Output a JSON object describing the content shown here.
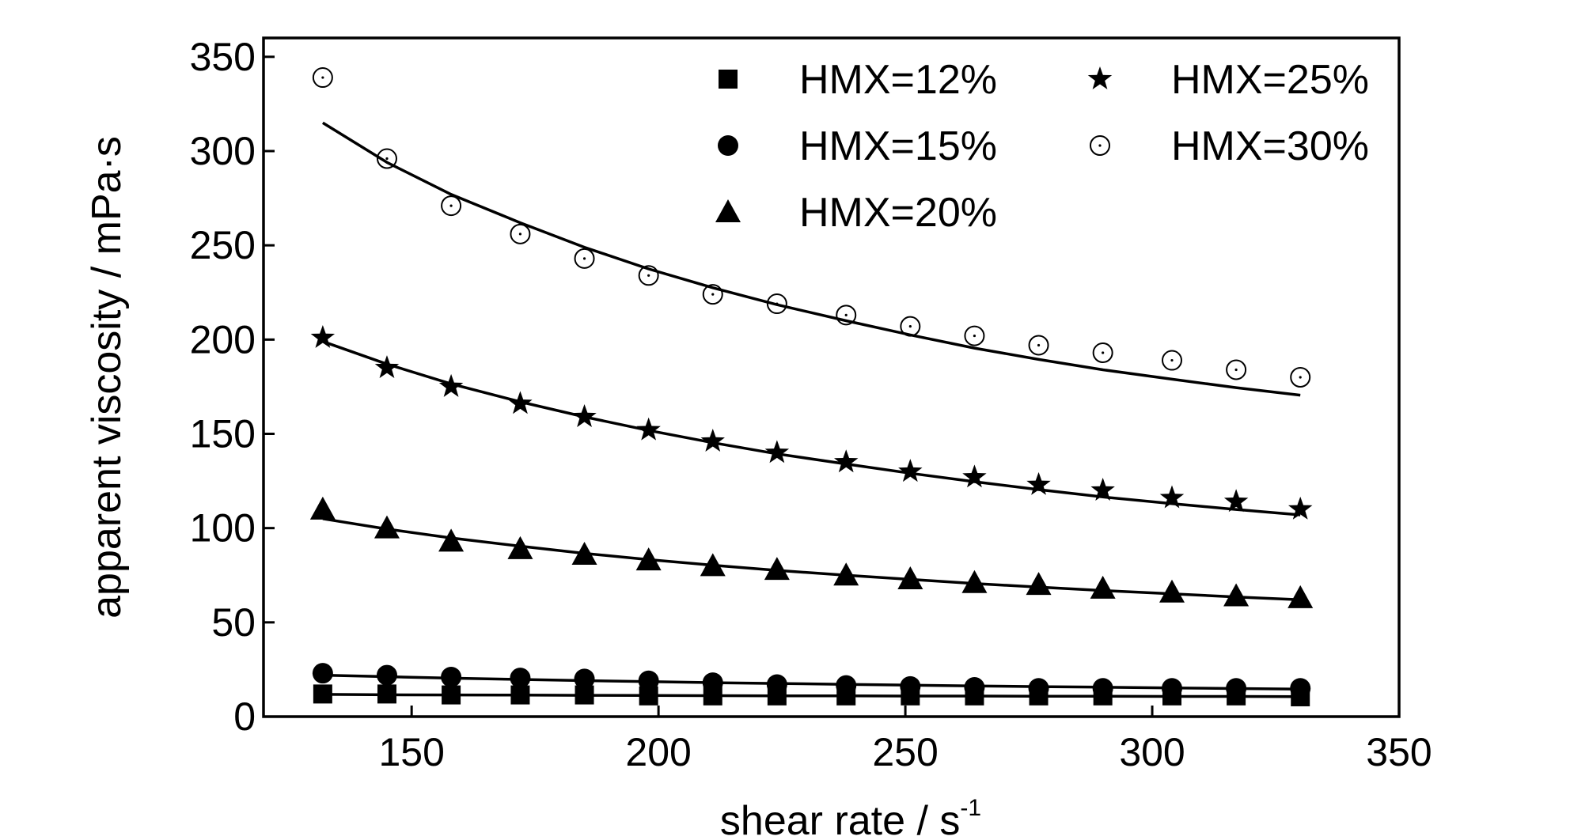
{
  "chart_data": {
    "type": "scatter",
    "title": "",
    "xlabel": "shear rate / s",
    "xlabel_superscript": "-1",
    "ylabel": "apparent viscosity / mPa·s",
    "xlim": [
      120,
      350
    ],
    "ylim": [
      0,
      360
    ],
    "xticks": [
      150,
      200,
      250,
      300,
      350
    ],
    "yticks": [
      0,
      50,
      100,
      150,
      200,
      250,
      300,
      350
    ],
    "x": [
      132,
      145,
      158,
      172,
      185,
      198,
      211,
      224,
      238,
      251,
      264,
      277,
      290,
      304,
      317,
      330
    ],
    "legend_position": "top",
    "fit_lines": true,
    "series": [
      {
        "name": "HMX=12%",
        "marker": "square",
        "values": [
          12,
          12,
          11.5,
          11.5,
          11.5,
          11,
          11,
          11,
          11,
          11,
          11,
          11,
          11,
          11,
          11,
          10.5
        ],
        "fit": [
          11.8,
          11.6,
          11.5,
          11.4,
          11.3,
          11.2,
          11.1,
          11.0,
          11.0,
          10.9,
          10.9,
          10.8,
          10.8,
          10.7,
          10.7,
          10.6
        ]
      },
      {
        "name": "HMX=15%",
        "marker": "circle-filled",
        "values": [
          23,
          22,
          21,
          20.5,
          20,
          19,
          18,
          17,
          16.5,
          16,
          15.5,
          15,
          15,
          15,
          15,
          15
        ],
        "fit": [
          22.0,
          21.2,
          20.4,
          19.7,
          19.1,
          18.6,
          18.0,
          17.6,
          17.1,
          16.7,
          16.3,
          15.9,
          15.6,
          15.2,
          14.9,
          14.6
        ]
      },
      {
        "name": "HMX=20%",
        "marker": "triangle",
        "values": [
          110,
          100,
          93,
          89,
          86,
          83,
          80,
          78,
          75,
          73,
          71,
          70,
          68,
          66,
          64,
          63
        ],
        "fit": [
          105.0,
          99.5,
          94.8,
          90.4,
          86.6,
          83.3,
          80.3,
          77.6,
          75.0,
          72.8,
          70.6,
          68.7,
          66.9,
          65.1,
          63.5,
          62.0
        ]
      },
      {
        "name": "HMX=25%",
        "marker": "star",
        "values": [
          201,
          185,
          175,
          166,
          159,
          152,
          146,
          140,
          135,
          130,
          127,
          123,
          120,
          116,
          114,
          110
        ],
        "fit": [
          199.0,
          187.0,
          176.5,
          167.0,
          159.0,
          151.8,
          145.3,
          139.4,
          134.0,
          129.1,
          124.6,
          120.4,
          116.5,
          113.0,
          109.9,
          107.0
        ]
      },
      {
        "name": "HMX=30%",
        "marker": "circle-open",
        "values": [
          339,
          296,
          271,
          256,
          243,
          234,
          224,
          219,
          213,
          207,
          202,
          197,
          193,
          189,
          184,
          180
        ],
        "fit": [
          315.0,
          294.0,
          277.0,
          262.0,
          249.0,
          237.5,
          227.5,
          218.5,
          210.0,
          202.5,
          195.5,
          189.5,
          184.0,
          179.0,
          174.5,
          170.5
        ]
      }
    ]
  }
}
